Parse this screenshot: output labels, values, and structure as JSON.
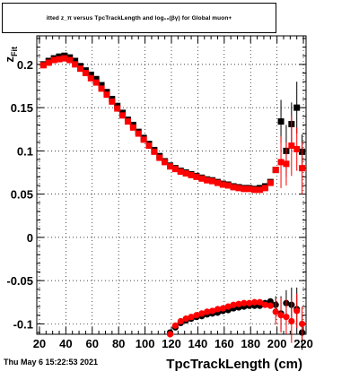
{
  "title": "itted  z_π  versus TpcTrackLength and log₁₀(βγ) for Global muon+",
  "date_stamp": "Thu May  6 15:22:53 2021",
  "colors": {
    "series_black": "#000000",
    "series_red": "#ff0000",
    "grid": "#000000"
  },
  "chart_data": {
    "type": "scatter",
    "xlabel": "TpcTrackLength (cm)",
    "ylabel": "z_Fit",
    "xlim": [
      18,
      222
    ],
    "ylim": [
      -0.112,
      0.233
    ],
    "x_ticks": [
      20,
      40,
      60,
      80,
      100,
      120,
      140,
      160,
      180,
      200,
      220
    ],
    "y_ticks": [
      -0.1,
      -0.05,
      0,
      0.05,
      0.1,
      0.15,
      0.2
    ],
    "y_tick_labels": [
      "-0.1",
      "-0.05",
      "0",
      "0.05",
      "0.1",
      "0.15",
      "0.2"
    ],
    "grid": true,
    "series": [
      {
        "marker": "square",
        "color": "#000000",
        "points": [
          [
            23,
            0.2
          ],
          [
            27,
            0.204
          ],
          [
            31,
            0.207
          ],
          [
            35,
            0.209
          ],
          [
            39,
            0.21
          ],
          [
            43,
            0.208
          ],
          [
            47,
            0.204
          ],
          [
            51,
            0.198
          ],
          [
            55,
            0.193
          ],
          [
            59,
            0.188
          ],
          [
            63,
            0.183
          ],
          [
            67,
            0.176
          ],
          [
            71,
            0.168
          ],
          [
            75,
            0.16
          ],
          [
            79,
            0.152
          ],
          [
            83,
            0.144
          ],
          [
            87,
            0.136
          ],
          [
            91,
            0.13
          ],
          [
            95,
            0.122
          ],
          [
            99,
            0.115
          ],
          [
            103,
            0.108
          ],
          [
            107,
            0.101
          ],
          [
            111,
            0.094
          ],
          [
            115,
            0.088
          ],
          [
            119,
            0.083
          ],
          [
            123,
            0.08
          ],
          [
            127,
            0.077
          ],
          [
            131,
            0.075
          ],
          [
            135,
            0.073
          ],
          [
            139,
            0.071
          ],
          [
            143,
            0.069
          ],
          [
            147,
            0.067
          ],
          [
            151,
            0.066
          ],
          [
            155,
            0.064
          ],
          [
            159,
            0.062
          ],
          [
            163,
            0.061
          ],
          [
            167,
            0.059
          ],
          [
            171,
            0.058
          ],
          [
            175,
            0.057
          ],
          [
            179,
            0.057
          ],
          [
            183,
            0.056
          ],
          [
            187,
            0.057
          ],
          [
            191,
            0.059
          ],
          [
            195,
            0.064
          ],
          [
            199,
            0.078
          ],
          [
            203,
            0.134
          ],
          [
            207,
            0.1
          ],
          [
            211,
            0.131
          ],
          [
            215,
            0.15
          ],
          [
            219,
            0.099
          ]
        ],
        "errors": [
          [
            203,
            0.025
          ],
          [
            207,
            0.03
          ],
          [
            211,
            0.025
          ],
          [
            215,
            0.03
          ],
          [
            219,
            0.02
          ]
        ]
      },
      {
        "marker": "square",
        "color": "#ff0000",
        "points": [
          [
            23,
            0.199
          ],
          [
            27,
            0.202
          ],
          [
            31,
            0.205
          ],
          [
            35,
            0.206
          ],
          [
            39,
            0.207
          ],
          [
            43,
            0.205
          ],
          [
            47,
            0.2
          ],
          [
            51,
            0.195
          ],
          [
            55,
            0.19
          ],
          [
            59,
            0.184
          ],
          [
            63,
            0.179
          ],
          [
            67,
            0.172
          ],
          [
            71,
            0.165
          ],
          [
            75,
            0.157
          ],
          [
            79,
            0.149
          ],
          [
            83,
            0.141
          ],
          [
            87,
            0.134
          ],
          [
            91,
            0.127
          ],
          [
            95,
            0.12
          ],
          [
            99,
            0.113
          ],
          [
            103,
            0.106
          ],
          [
            107,
            0.099
          ],
          [
            111,
            0.092
          ],
          [
            115,
            0.087
          ],
          [
            119,
            0.082
          ],
          [
            123,
            0.079
          ],
          [
            127,
            0.076
          ],
          [
            131,
            0.074
          ],
          [
            135,
            0.072
          ],
          [
            139,
            0.07
          ],
          [
            143,
            0.068
          ],
          [
            147,
            0.066
          ],
          [
            151,
            0.065
          ],
          [
            155,
            0.063
          ],
          [
            159,
            0.061
          ],
          [
            163,
            0.06
          ],
          [
            167,
            0.058
          ],
          [
            171,
            0.057
          ],
          [
            175,
            0.056
          ],
          [
            179,
            0.056
          ],
          [
            183,
            0.055
          ],
          [
            187,
            0.055
          ],
          [
            191,
            0.057
          ],
          [
            195,
            0.063
          ],
          [
            199,
            0.078
          ],
          [
            203,
            0.087
          ],
          [
            207,
            0.085
          ],
          [
            211,
            0.106
          ],
          [
            215,
            0.102
          ],
          [
            219,
            0.08
          ]
        ],
        "errors": [
          [
            203,
            0.03
          ],
          [
            207,
            0.025
          ],
          [
            211,
            0.035
          ],
          [
            215,
            0.025
          ],
          [
            219,
            0.03
          ]
        ]
      },
      {
        "marker": "circle",
        "color": "#000000",
        "points": [
          [
            119,
            -0.11
          ],
          [
            123,
            -0.104
          ],
          [
            127,
            -0.099
          ],
          [
            131,
            -0.096
          ],
          [
            135,
            -0.094
          ],
          [
            139,
            -0.092
          ],
          [
            143,
            -0.091
          ],
          [
            147,
            -0.089
          ],
          [
            151,
            -0.088
          ],
          [
            155,
            -0.087
          ],
          [
            159,
            -0.085
          ],
          [
            163,
            -0.084
          ],
          [
            167,
            -0.082
          ],
          [
            171,
            -0.081
          ],
          [
            175,
            -0.08
          ],
          [
            179,
            -0.079
          ],
          [
            183,
            -0.079
          ],
          [
            187,
            -0.079
          ],
          [
            191,
            -0.076
          ],
          [
            195,
            -0.074
          ],
          [
            199,
            -0.078
          ],
          [
            203,
            -0.088
          ],
          [
            207,
            -0.076
          ],
          [
            211,
            -0.078
          ],
          [
            215,
            -0.083
          ],
          [
            219,
            -0.11
          ]
        ],
        "errors": [
          [
            199,
            0.01
          ],
          [
            203,
            0.02
          ],
          [
            207,
            0.015
          ],
          [
            211,
            0.02
          ],
          [
            215,
            0.025
          ],
          [
            219,
            0.02
          ]
        ]
      },
      {
        "marker": "circle",
        "color": "#ff0000",
        "points": [
          [
            119,
            -0.112
          ],
          [
            123,
            -0.102
          ],
          [
            127,
            -0.097
          ],
          [
            131,
            -0.094
          ],
          [
            135,
            -0.092
          ],
          [
            139,
            -0.09
          ],
          [
            143,
            -0.088
          ],
          [
            147,
            -0.086
          ],
          [
            151,
            -0.085
          ],
          [
            155,
            -0.083
          ],
          [
            159,
            -0.082
          ],
          [
            163,
            -0.08
          ],
          [
            167,
            -0.078
          ],
          [
            171,
            -0.077
          ],
          [
            175,
            -0.076
          ],
          [
            179,
            -0.076
          ],
          [
            183,
            -0.075
          ],
          [
            187,
            -0.075
          ],
          [
            191,
            -0.078
          ],
          [
            195,
            -0.079
          ],
          [
            199,
            -0.086
          ],
          [
            203,
            -0.09
          ],
          [
            207,
            -0.092
          ],
          [
            211,
            -0.097
          ],
          [
            215,
            -0.085
          ],
          [
            219,
            -0.1
          ]
        ],
        "errors": [
          [
            199,
            0.015
          ],
          [
            203,
            0.02
          ],
          [
            207,
            0.02
          ],
          [
            211,
            0.025
          ],
          [
            215,
            0.02
          ],
          [
            219,
            0.02
          ]
        ]
      }
    ]
  }
}
